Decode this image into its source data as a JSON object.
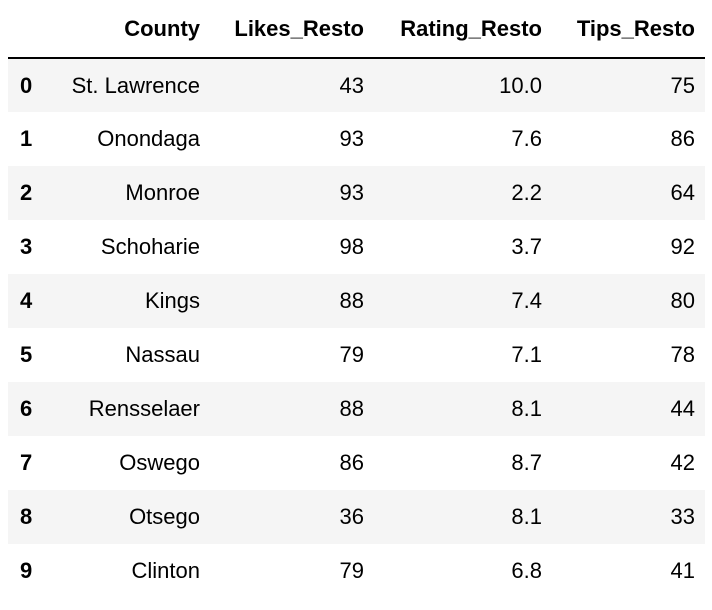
{
  "table": {
    "index_header": "",
    "columns": [
      "County",
      "Likes_Resto",
      "Rating_Resto",
      "Tips_Resto"
    ],
    "rows": [
      {
        "index": "0",
        "cells": [
          "St. Lawrence",
          "43",
          "10.0",
          "75"
        ]
      },
      {
        "index": "1",
        "cells": [
          "Onondaga",
          "93",
          "7.6",
          "86"
        ]
      },
      {
        "index": "2",
        "cells": [
          "Monroe",
          "93",
          "2.2",
          "64"
        ]
      },
      {
        "index": "3",
        "cells": [
          "Schoharie",
          "98",
          "3.7",
          "92"
        ]
      },
      {
        "index": "4",
        "cells": [
          "Kings",
          "88",
          "7.4",
          "80"
        ]
      },
      {
        "index": "5",
        "cells": [
          "Nassau",
          "79",
          "7.1",
          "78"
        ]
      },
      {
        "index": "6",
        "cells": [
          "Rensselaer",
          "88",
          "8.1",
          "44"
        ]
      },
      {
        "index": "7",
        "cells": [
          "Oswego",
          "86",
          "8.7",
          "42"
        ]
      },
      {
        "index": "8",
        "cells": [
          "Otsego",
          "36",
          "8.1",
          "33"
        ]
      },
      {
        "index": "9",
        "cells": [
          "Clinton",
          "79",
          "6.8",
          "41"
        ]
      }
    ]
  },
  "colors": {
    "stripe": "#f5f5f5",
    "header_rule": "#000000"
  }
}
